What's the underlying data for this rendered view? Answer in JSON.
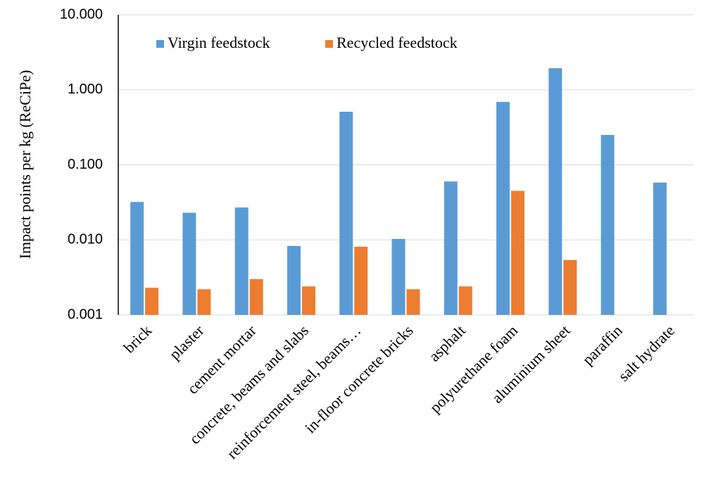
{
  "chart_data": {
    "type": "bar",
    "ylabel": "Impact points per kg (ReCiPe)",
    "categories": [
      "brick",
      "plaster",
      "cement mortar",
      "concrete, beams and slabs",
      "reinforcement steel, beams…",
      "in-floor concrete bricks",
      "asphalt",
      "polyurethane foam",
      "aluminium sheet",
      "paraffin",
      "salt hydrate"
    ],
    "series": [
      {
        "name": "Virgin feedstock",
        "color": "#5b9bd5",
        "values": [
          0.032,
          0.023,
          0.027,
          0.0083,
          0.51,
          0.0103,
          0.06,
          0.69,
          1.94,
          0.25,
          0.058
        ]
      },
      {
        "name": "Recycled feedstock",
        "color": "#ed7d31",
        "values": [
          0.0023,
          0.0022,
          0.003,
          0.0024,
          0.0081,
          0.0022,
          0.0024,
          0.045,
          0.0054,
          null,
          null
        ]
      }
    ],
    "ylim": [
      0.001,
      10
    ],
    "yticks": [
      {
        "value": 0.001,
        "label": "0.001"
      },
      {
        "value": 0.01,
        "label": "0.010"
      },
      {
        "value": 0.1,
        "label": "0.100"
      },
      {
        "value": 1,
        "label": "1.000"
      },
      {
        "value": 10,
        "label": "10.000"
      }
    ],
    "log_scale": true,
    "grid": true,
    "legend": "top-left"
  }
}
